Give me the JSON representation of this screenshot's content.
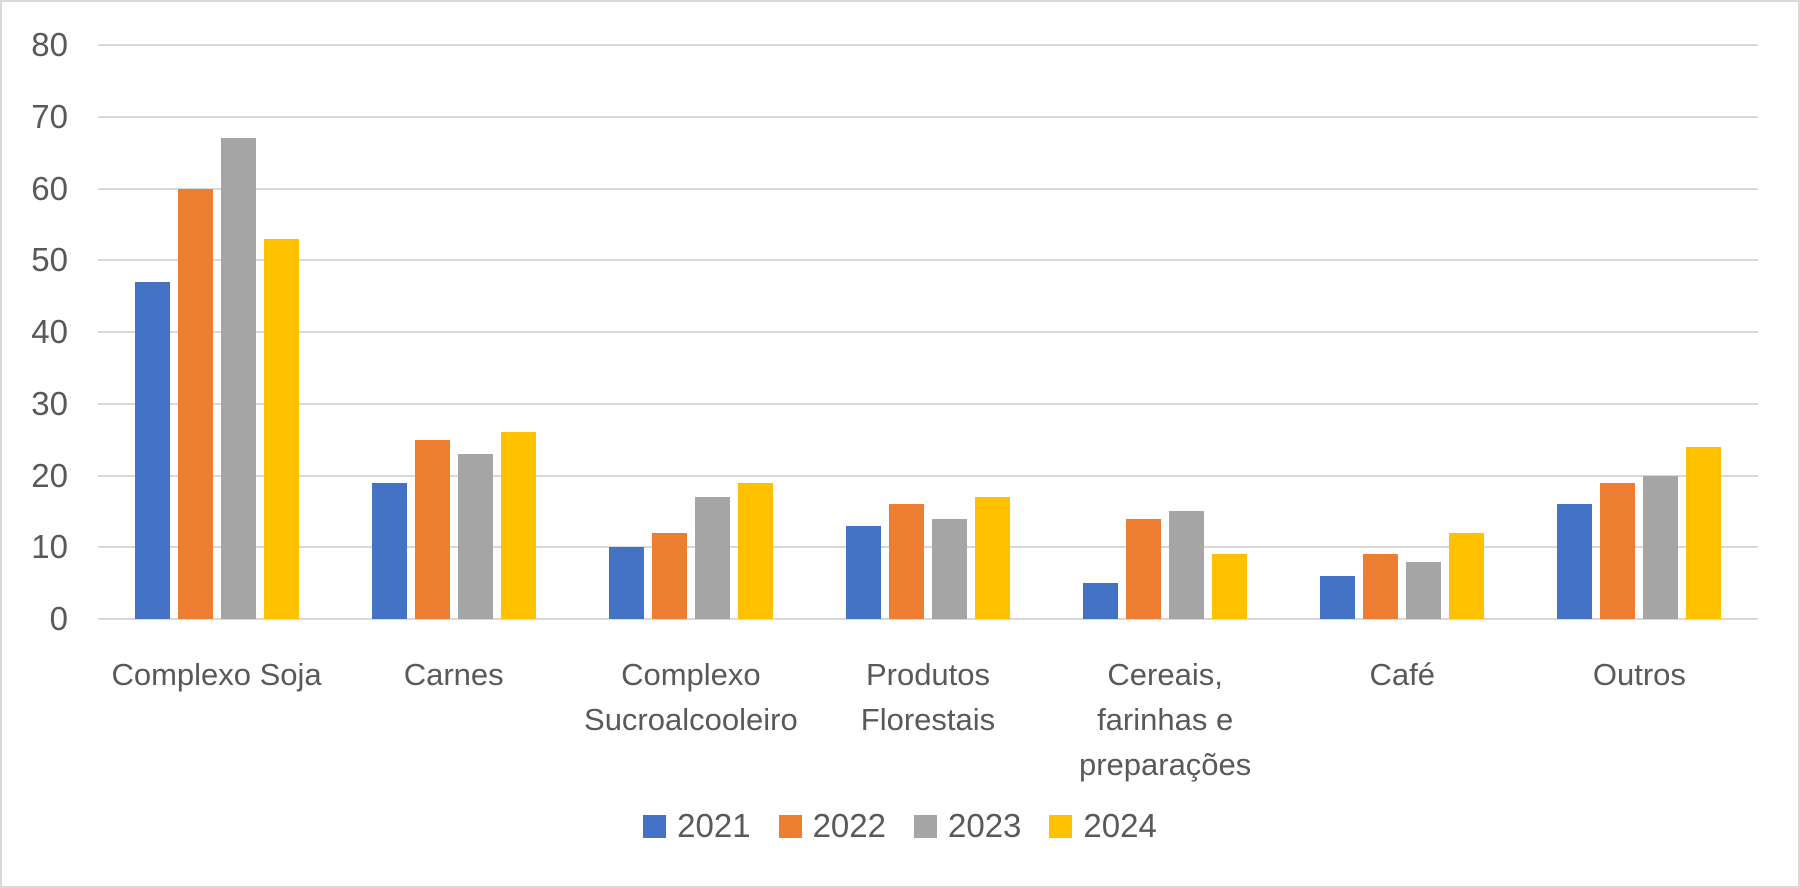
{
  "chart_data": {
    "type": "bar",
    "title": "",
    "xlabel": "",
    "ylabel": "",
    "categories": [
      "Complexo Soja",
      "Carnes",
      "Complexo Sucroalcooleiro",
      "Produtos Florestais",
      "Cereais, farinhas e preparações",
      "Café",
      "Outros"
    ],
    "series": [
      {
        "name": "2021",
        "color": "#4472C4",
        "values": [
          47,
          19,
          10,
          13,
          5,
          6,
          16
        ]
      },
      {
        "name": "2022",
        "color": "#ED7D31",
        "values": [
          60,
          25,
          12,
          16,
          14,
          9,
          19
        ]
      },
      {
        "name": "2023",
        "color": "#A5A5A5",
        "values": [
          67,
          23,
          17,
          14,
          15,
          8,
          20
        ]
      },
      {
        "name": "2024",
        "color": "#FFC000",
        "values": [
          53,
          26,
          19,
          17,
          9,
          12,
          24
        ]
      }
    ],
    "ylim": [
      0,
      80
    ],
    "yticks": [
      0,
      10,
      20,
      30,
      40,
      50,
      60,
      70,
      80
    ],
    "grid": true,
    "legend_position": "bottom"
  },
  "colors": {
    "background": "#FFFFFF",
    "frame_border": "#D9D9D9",
    "gridline": "#D9D9D9",
    "axis_text": "#595959"
  }
}
